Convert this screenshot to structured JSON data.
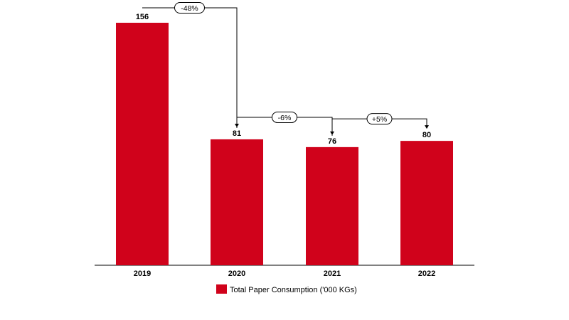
{
  "chart_data": {
    "type": "bar",
    "categories": [
      "2019",
      "2020",
      "2021",
      "2022"
    ],
    "series": [
      {
        "name": "Total Paper Consumption ('000 KGs)",
        "values": [
          156,
          81,
          76,
          80
        ]
      }
    ],
    "data_labels": [
      "156",
      "81",
      "76",
      "80"
    ],
    "changes": [
      {
        "from": "2019",
        "to": "2020",
        "label": "-48%"
      },
      {
        "from": "2020",
        "to": "2021",
        "label": "-6%"
      },
      {
        "from": "2021",
        "to": "2022",
        "label": "+5%"
      }
    ],
    "ylim": [
      0,
      156
    ],
    "grid": false,
    "legend_position": "bottom-center",
    "colors": {
      "bar": "#D0021B",
      "axis": "#000000"
    }
  }
}
